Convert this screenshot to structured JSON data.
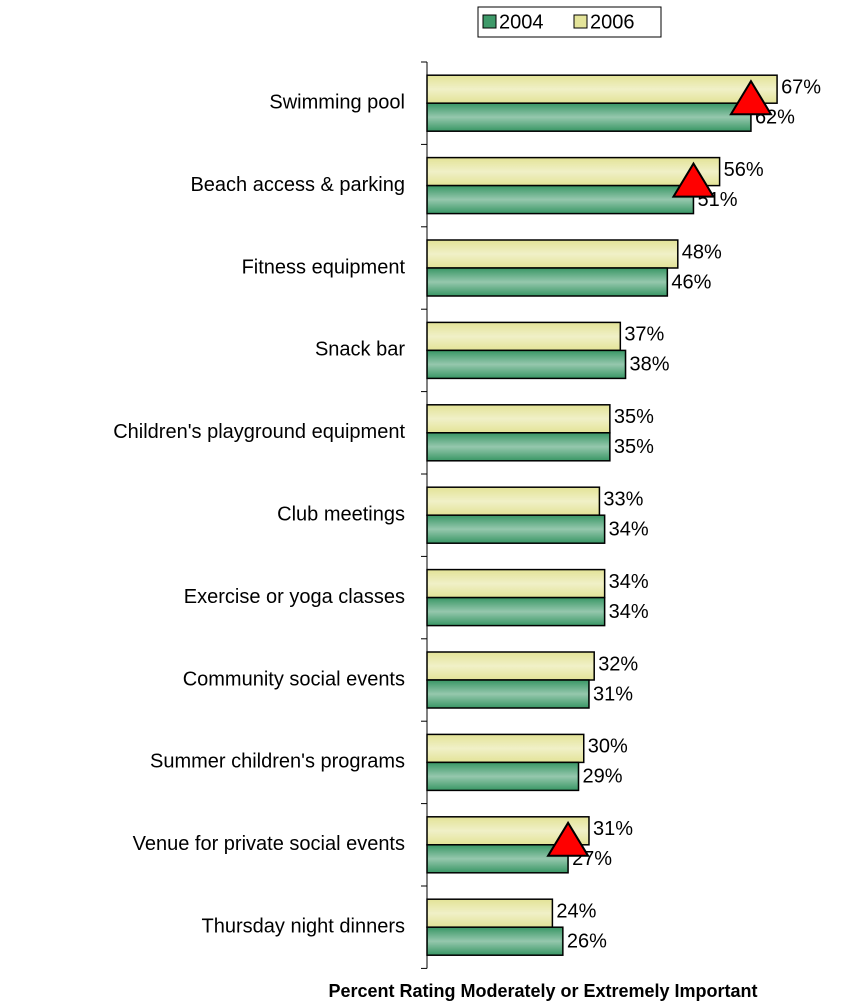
{
  "chart_data": {
    "type": "barh",
    "xlabel": "Percent Rating Moderately or Extremely Important",
    "categories": [
      "Swimming pool",
      "Beach access & parking",
      "Fitness equipment ",
      "Snack bar",
      "Children's playground equipment",
      "Club meetings",
      "Exercise or yoga classes ",
      "Community social events",
      "Summer children's programs",
      "Venue for private social events",
      "Thursday night dinners"
    ],
    "series": [
      {
        "name": "2004",
        "color": "#3f9a6a",
        "values": [
          62,
          51,
          46,
          38,
          35,
          34,
          34,
          31,
          29,
          27,
          26
        ],
        "value_labels": [
          "62%",
          "51%",
          "46%",
          "38%",
          "35%",
          "34%",
          "34%",
          "31%",
          "29%",
          "27%",
          "26%"
        ]
      },
      {
        "name": "2006",
        "color": "#e4e49a",
        "values": [
          67,
          56,
          48,
          37,
          35,
          33,
          34,
          32,
          30,
          31,
          24
        ],
        "value_labels": [
          "67%",
          "56%",
          "48%",
          "37%",
          "35%",
          "33%",
          "34%",
          "32%",
          "30%",
          "31%",
          "24%"
        ]
      }
    ],
    "markers": [
      true,
      true,
      false,
      false,
      false,
      false,
      false,
      false,
      false,
      true,
      false
    ],
    "marker_color": "#ff0000",
    "xlim": [
      0,
      80
    ],
    "legend": "top"
  }
}
